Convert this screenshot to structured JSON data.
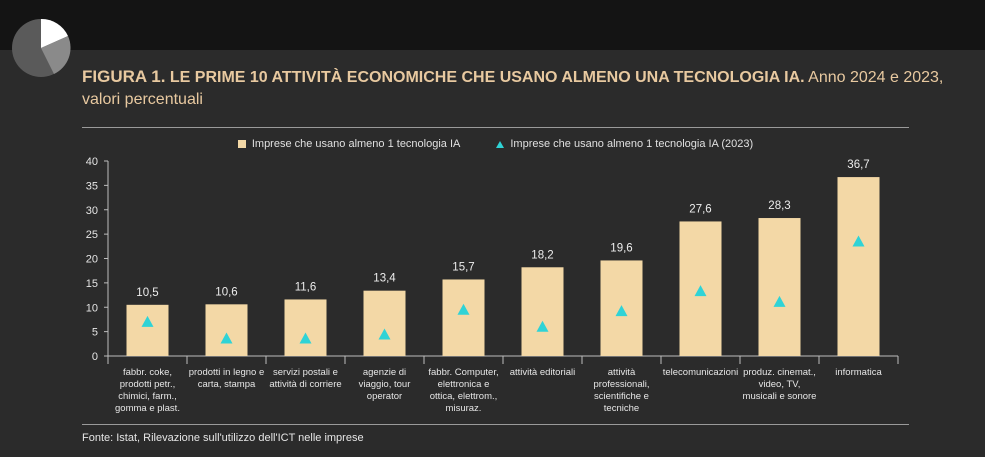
{
  "title": {
    "figure_label": "FIGURA 1.",
    "main": "LE PRIME 10 ATTIVITÀ ECONOMICHE CHE USANO ALMENO UNA TECNOLOGIA IA.",
    "subtitle": "Anno 2024 e 2023, valori percentuali"
  },
  "source": "Fonte: Istat, Rilevazione sull'utilizzo dell'ICT nelle imprese",
  "colors": {
    "bar": "#f3d8a6",
    "marker": "#2fd3d6",
    "background": "#2b2b2b",
    "title": "#e8c9a0"
  },
  "logo_icon": "pie-chart-icon",
  "chart_data": {
    "type": "bar",
    "categories": [
      [
        "fabbr. coke,",
        "prodotti petr.,",
        "chimici, farm.,",
        "gomma e plast."
      ],
      [
        "prodotti in legno e",
        "carta, stampa"
      ],
      [
        "servizi postali e",
        "attività di corriere"
      ],
      [
        "agenzie di",
        "viaggio, tour",
        "operator"
      ],
      [
        "fabbr. Computer,",
        "elettronica e",
        "ottica, elettrom.,",
        "misuraz."
      ],
      [
        "attività editoriali"
      ],
      [
        "attività",
        "professionali,",
        "scientifiche e",
        "tecniche"
      ],
      [
        "telecomunicazioni"
      ],
      [
        "produz. cinemat.,",
        "video, TV,",
        "musicali e sonore"
      ],
      [
        "informatica"
      ]
    ],
    "series": [
      {
        "name": "Imprese che usano almeno 1 tecnologia IA",
        "type": "bar",
        "values": [
          10.5,
          10.6,
          11.6,
          13.4,
          15.7,
          18.2,
          19.6,
          27.6,
          28.3,
          36.7
        ],
        "labels": [
          "10,5",
          "10,6",
          "11,6",
          "13,4",
          "15,7",
          "18,2",
          "19,6",
          "27,6",
          "28,3",
          "36,7"
        ]
      },
      {
        "name": "Imprese che usano almeno 1 tecnologia IA (2023)",
        "type": "marker",
        "values": [
          7.0,
          3.6,
          3.6,
          4.4,
          9.5,
          6.0,
          9.2,
          13.3,
          11.1,
          23.5
        ]
      }
    ],
    "ylim": [
      0,
      40
    ],
    "yticks": [
      0,
      5,
      10,
      15,
      20,
      25,
      30,
      35,
      40
    ],
    "grid": false,
    "legend_position": "top"
  }
}
